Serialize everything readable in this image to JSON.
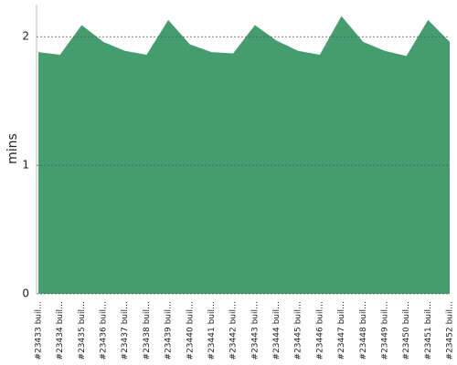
{
  "chart_data": {
    "type": "area",
    "y_label": "mins",
    "categories": [
      "#23433 buil…",
      "#23434 buil…",
      "#23435 buil…",
      "#23436 buil…",
      "#23437 buil…",
      "#23438 buil…",
      "#23439 buil…",
      "#23440 buil…",
      "#23441 buil…",
      "#23442 buil…",
      "#23443 buil…",
      "#23444 buil…",
      "#23445 buil…",
      "#23446 buil…",
      "#23447 buil…",
      "#23448 buil…",
      "#23449 buil…",
      "#23450 buil…",
      "#23451 buil…",
      "#23452 buil…"
    ],
    "values": [
      1.88,
      1.86,
      2.09,
      1.96,
      1.89,
      1.86,
      2.13,
      1.94,
      1.88,
      1.87,
      2.09,
      1.97,
      1.89,
      1.86,
      2.16,
      1.96,
      1.89,
      1.85,
      2.13,
      1.96
    ],
    "color": "#459c6e",
    "ylim": [
      0,
      2.25
    ],
    "yticks": [
      0,
      1,
      2
    ],
    "grid": true
  }
}
